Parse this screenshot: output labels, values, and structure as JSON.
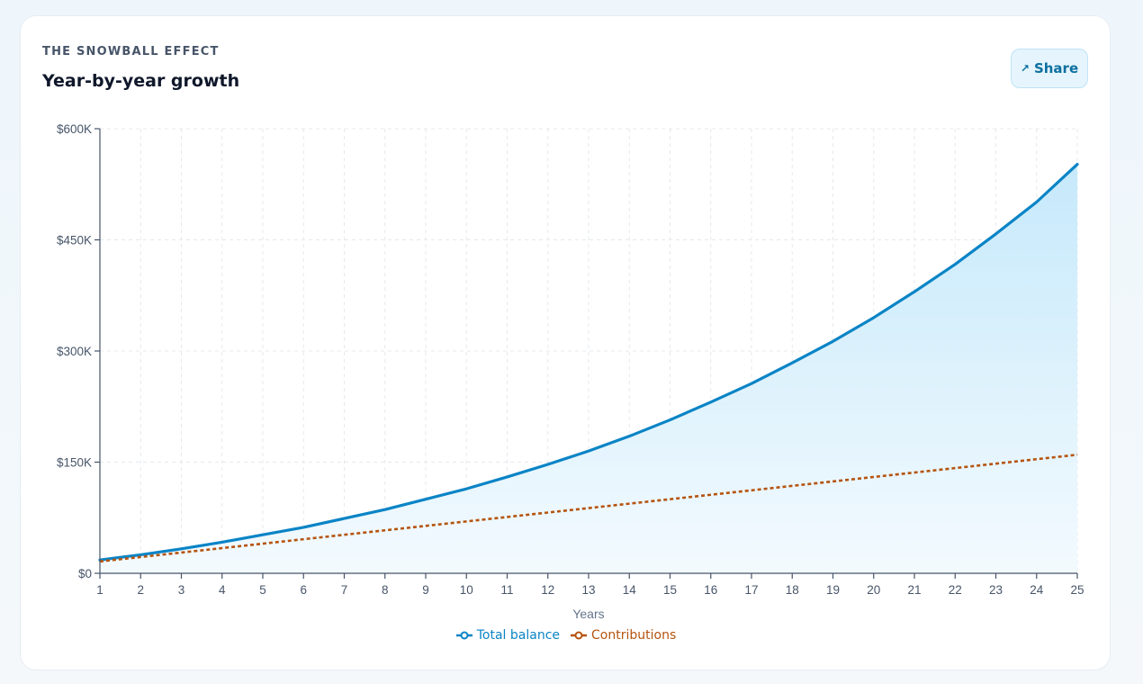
{
  "header": {
    "eyebrow": "THE SNOWBALL EFFECT",
    "title": "Year-by-year growth",
    "share_label": "Share",
    "share_icon": "arrow-up-right-icon"
  },
  "colors": {
    "total": "#0a84c6",
    "contributions": "#b5540f",
    "area_top": "#c6e9fb",
    "area_bottom": "#f3fafe"
  },
  "chart_data": {
    "type": "area",
    "xlabel": "Years",
    "ylabel": "",
    "x": [
      1,
      2,
      3,
      4,
      5,
      6,
      7,
      8,
      9,
      10,
      11,
      12,
      13,
      14,
      15,
      16,
      17,
      18,
      19,
      20,
      21,
      22,
      23,
      24,
      25
    ],
    "ylim": [
      0,
      600000
    ],
    "y_ticks": [
      0,
      150000,
      300000,
      450000,
      600000
    ],
    "y_tick_labels": [
      "$0",
      "$150K",
      "$300K",
      "$450K",
      "$600K"
    ],
    "grid": true,
    "legend_position": "bottom-center",
    "series": [
      {
        "name": "Total balance",
        "style": "solid",
        "fill": true,
        "values": [
          18000,
          25000,
          33000,
          42000,
          52000,
          62000,
          74000,
          86000,
          100000,
          114000,
          130000,
          147000,
          165000,
          185000,
          207000,
          231000,
          256000,
          284000,
          313000,
          345000,
          380000,
          417000,
          458000,
          501000,
          552000
        ]
      },
      {
        "name": "Contributions",
        "style": "dotted",
        "fill": false,
        "values": [
          16000,
          22000,
          28000,
          34000,
          40000,
          46000,
          52000,
          58000,
          64000,
          70000,
          76000,
          82000,
          88000,
          94000,
          100000,
          106000,
          112000,
          118000,
          124000,
          130000,
          136000,
          142000,
          148000,
          154000,
          160000
        ]
      }
    ]
  }
}
